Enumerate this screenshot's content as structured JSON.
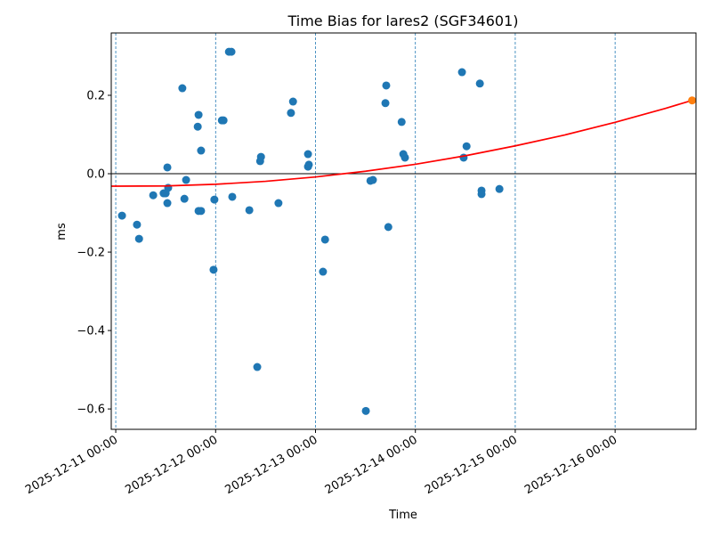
{
  "chart_data": {
    "type": "scatter",
    "title": "Time Bias for lares2 (SGF34601)",
    "xlabel": "Time",
    "ylabel": "ms",
    "xlim": [
      "2025-12-10 22:55",
      "2025-12-16 19:26"
    ],
    "ylim": [
      -0.652,
      0.359
    ],
    "grid": "vertical dashed at x ticks",
    "zero_line": 0,
    "x_ticks": [
      "2025-12-11 00:00",
      "2025-12-12 00:00",
      "2025-12-13 00:00",
      "2025-12-14 00:00",
      "2025-12-15 00:00",
      "2025-12-16 00:00"
    ],
    "y_ticks": [
      {
        "value": 0.2,
        "label": "0.2"
      },
      {
        "value": 0.0,
        "label": "0.0"
      },
      {
        "value": -0.2,
        "label": "−0.2"
      },
      {
        "value": -0.4,
        "label": "−0.4"
      },
      {
        "value": -0.6,
        "label": "−0.6"
      }
    ],
    "colors": {
      "points": "#1f77b4",
      "fit": "#ff0000",
      "prediction": "#ff7f0e",
      "grid": "#1f77b4",
      "zero": "#000000"
    },
    "points": [
      [
        "2025-12-11 01:30",
        -0.107
      ],
      [
        "2025-12-11 05:06",
        -0.13
      ],
      [
        "2025-12-11 05:36",
        -0.166
      ],
      [
        "2025-12-11 09:00",
        -0.055
      ],
      [
        "2025-12-11 11:30",
        -0.05
      ],
      [
        "2025-12-11 12:00",
        -0.05
      ],
      [
        "2025-12-11 12:24",
        0.016
      ],
      [
        "2025-12-11 12:36",
        -0.036
      ],
      [
        "2025-12-11 12:24",
        -0.075
      ],
      [
        "2025-12-11 16:00",
        0.218
      ],
      [
        "2025-12-11 16:30",
        -0.064
      ],
      [
        "2025-12-11 16:54",
        -0.016
      ],
      [
        "2025-12-11 19:42",
        0.12
      ],
      [
        "2025-12-11 19:54",
        0.15
      ],
      [
        "2025-12-11 19:54",
        -0.095
      ],
      [
        "2025-12-11 20:30",
        -0.095
      ],
      [
        "2025-12-11 20:30",
        0.059
      ],
      [
        "2025-12-11 23:30",
        -0.245
      ],
      [
        "2025-12-11 23:42",
        -0.066
      ],
      [
        "2025-12-12 01:30",
        0.136
      ],
      [
        "2025-12-12 01:54",
        0.136
      ],
      [
        "2025-12-12 03:12",
        0.311
      ],
      [
        "2025-12-12 03:48",
        0.311
      ],
      [
        "2025-12-12 04:00",
        -0.059
      ],
      [
        "2025-12-12 08:06",
        -0.093
      ],
      [
        "2025-12-12 10:00",
        -0.493
      ],
      [
        "2025-12-12 10:42",
        0.032
      ],
      [
        "2025-12-12 10:54",
        0.043
      ],
      [
        "2025-12-12 15:06",
        -0.075
      ],
      [
        "2025-12-12 18:06",
        0.155
      ],
      [
        "2025-12-12 18:36",
        0.184
      ],
      [
        "2025-12-12 22:12",
        0.05
      ],
      [
        "2025-12-12 22:12",
        0.018
      ],
      [
        "2025-12-12 22:24",
        0.023
      ],
      [
        "2025-12-13 01:48",
        -0.25
      ],
      [
        "2025-12-13 02:18",
        -0.168
      ],
      [
        "2025-12-13 12:06",
        -0.605
      ],
      [
        "2025-12-13 13:12",
        -0.018
      ],
      [
        "2025-12-13 13:48",
        -0.016
      ],
      [
        "2025-12-13 16:48",
        0.18
      ],
      [
        "2025-12-13 17:00",
        0.225
      ],
      [
        "2025-12-13 17:30",
        -0.136
      ],
      [
        "2025-12-13 20:42",
        0.132
      ],
      [
        "2025-12-13 21:06",
        0.05
      ],
      [
        "2025-12-13 21:30",
        0.041
      ],
      [
        "2025-12-14 11:12",
        0.259
      ],
      [
        "2025-12-14 11:36",
        0.041
      ],
      [
        "2025-12-14 12:18",
        0.07
      ],
      [
        "2025-12-14 15:30",
        0.23
      ],
      [
        "2025-12-14 15:54",
        -0.043
      ],
      [
        "2025-12-14 15:54",
        -0.052
      ],
      [
        "2025-12-14 20:12",
        -0.039
      ]
    ],
    "prediction_point": [
      "2025-12-16 18:30",
      0.187
    ],
    "fit_curve": [
      [
        "2025-12-10 22:55",
        -0.0317
      ],
      [
        "2025-12-11 00:00",
        -0.0318
      ],
      [
        "2025-12-11 12:00",
        -0.0312
      ],
      [
        "2025-12-12 00:00",
        -0.027
      ],
      [
        "2025-12-12 12:00",
        -0.0194
      ],
      [
        "2025-12-13 00:00",
        -0.0083
      ],
      [
        "2025-12-13 12:00",
        0.0063
      ],
      [
        "2025-12-14 00:00",
        0.024
      ],
      [
        "2025-12-14 12:00",
        0.0458
      ],
      [
        "2025-12-15 00:00",
        0.071
      ],
      [
        "2025-12-15 12:00",
        0.0991
      ],
      [
        "2025-12-16 00:00",
        0.131
      ],
      [
        "2025-12-16 12:00",
        0.1664
      ],
      [
        "2025-12-16 18:30",
        0.187
      ]
    ]
  }
}
